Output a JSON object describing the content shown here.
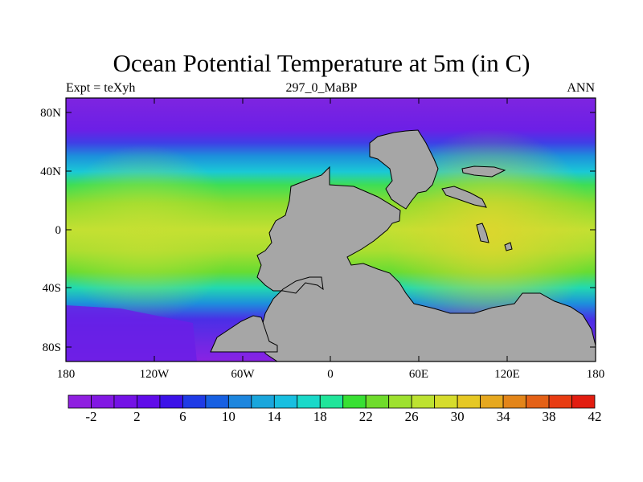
{
  "title": "Ocean Potential Temperature at 5m (in C)",
  "left_string": "Expt = teXyh",
  "center_string": "297_0_MaBP",
  "right_string": "ANN",
  "x_ticks": [
    "180",
    "120W",
    "60W",
    "0",
    "60E",
    "120E",
    "180"
  ],
  "y_ticks": [
    "80N",
    "40N",
    "0",
    "40S",
    "80S"
  ],
  "colorbar_labels": [
    "-2",
    "2",
    "6",
    "10",
    "14",
    "18",
    "22",
    "26",
    "30",
    "34",
    "38",
    "42"
  ],
  "colors": {
    "land": "#a6a6a6",
    "colorbar": [
      "#8f1fe0",
      "#8218e3",
      "#7412e6",
      "#600ce9",
      "#3c12e8",
      "#1f3be6",
      "#1760e2",
      "#1d86de",
      "#1aa6dc",
      "#18bfe0",
      "#1ad9c9",
      "#20e59a",
      "#38e033",
      "#6fdc2b",
      "#9ee12f",
      "#bde231",
      "#d6dc2c",
      "#e6c824",
      "#e6a81f",
      "#e38519",
      "#e46116",
      "#e83c12",
      "#e21d10"
    ]
  }
}
